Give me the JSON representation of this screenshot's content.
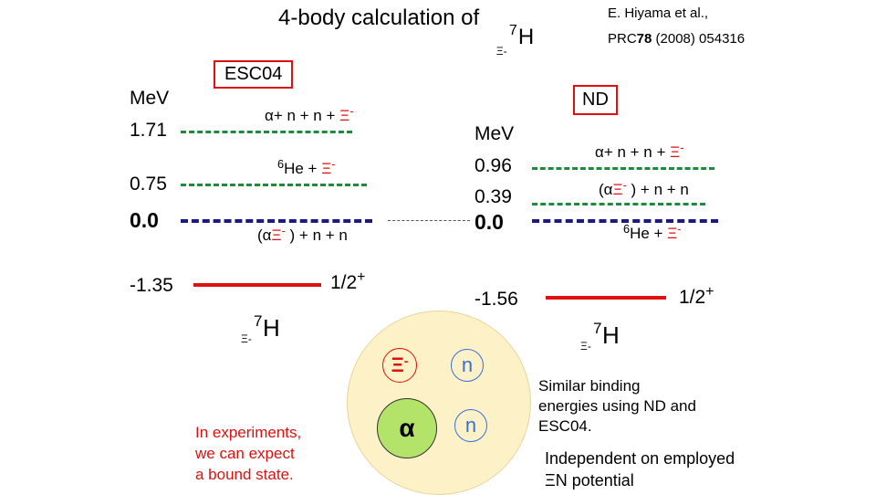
{
  "title": {
    "text": "4-body calculation of ",
    "nuc_xi": "Ξ",
    "nuc_sign": "-",
    "nuc_mass": "7",
    "nuc_elem": "H"
  },
  "reference": {
    "authors": "E. Hiyama et al.,",
    "journal": "PRC",
    "volume": "78",
    "rest": " (2008) 054316"
  },
  "left": {
    "label": "ESC04",
    "unit": "MeV",
    "energies": [
      "1.71",
      "0.75",
      "0.0",
      "-1.35"
    ],
    "channels": {
      "top": {
        "prefix": "α+ n + n + ",
        "xi": "Ξ",
        "sign": "-"
      },
      "mid": {
        "sup": "6",
        "prefix": "He + ",
        "xi": "Ξ",
        "sign": "-"
      },
      "low": {
        "open": "(α",
        "xi": "Ξ",
        "sign": "-",
        "rest": " ) + n + n"
      }
    },
    "state": {
      "j": "1/2",
      "parity": "+"
    },
    "nucleus": {
      "xi": "Ξ",
      "sign": "-",
      "mass": "7",
      "elem": "H"
    }
  },
  "right": {
    "label": "ND",
    "unit": "MeV",
    "energies": [
      "0.96",
      "0.39",
      "0.0",
      "-1.56"
    ],
    "channels": {
      "top": {
        "prefix": "α+ n + n + ",
        "xi": "Ξ",
        "sign": "-"
      },
      "mid": {
        "open": "(α",
        "xi": "Ξ",
        "sign": "-",
        "rest": " ) + n + n"
      },
      "low": {
        "sup": "6",
        "prefix": "He + ",
        "xi": "Ξ",
        "sign": "-"
      }
    },
    "state": {
      "j": "1/2",
      "parity": "+"
    },
    "nucleus": {
      "xi": "Ξ",
      "sign": "-",
      "mass": "7",
      "elem": "H"
    }
  },
  "cluster": {
    "xi": "Ξ",
    "sign": "-",
    "alpha": "α",
    "n1": "n",
    "n2": "n"
  },
  "notes": {
    "experiment": [
      "In experiments,",
      "we can expect",
      "a bound state."
    ],
    "similar": [
      "Similar binding",
      "energies using ND and",
      "ESC04."
    ],
    "independent": [
      "Independent on employed",
      "ΞN potential"
    ]
  },
  "colors": {
    "xi": "#e01010",
    "green_dash": "#1f8a3a",
    "navy_dash": "#1a1a80",
    "red_level": "#e01010",
    "cluster_bg": "#fdf1c8",
    "alpha_fill": "#b4e36a"
  }
}
